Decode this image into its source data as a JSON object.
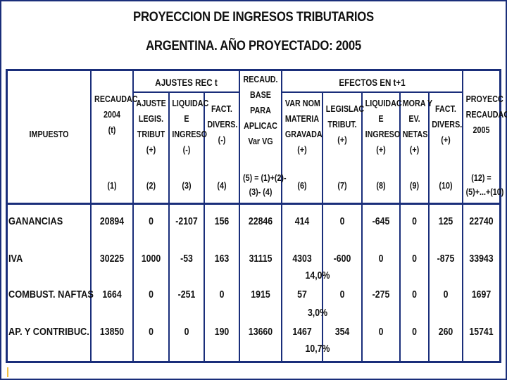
{
  "title": "PROYECCION DE INGRESOS TRIBUTARIOS",
  "subtitle": "ARGENTINA. AÑO PROYECTADO: 2005",
  "group_headers": {
    "ajustes": "AJUSTES REC t",
    "efectos": "EFECTOS EN t+1"
  },
  "columns": [
    {
      "lines": [
        "IMPUESTO"
      ],
      "index": ""
    },
    {
      "lines": [
        "RECAUDAC",
        "2004",
        "(t)"
      ],
      "index": "(1)"
    },
    {
      "lines": [
        "AJUSTE",
        "LEGIS.",
        "TRIBUT",
        "(+)"
      ],
      "index": "(2)"
    },
    {
      "lines": [
        "LIQUIDAC",
        "E",
        "INGRESO",
        "(-)"
      ],
      "index": "(3)"
    },
    {
      "lines": [
        "FACT.",
        "DIVERS.",
        "(-)"
      ],
      "index": "(4)"
    },
    {
      "lines": [
        "RECAUD.",
        "BASE",
        "PARA",
        "APLICAC",
        "Var VG"
      ],
      "index": "(5) = (1)+(2)-\n(3)- (4)"
    },
    {
      "lines": [
        "VAR NOM",
        "MATERIA",
        "GRAVADA",
        "(+)"
      ],
      "index": "(6)"
    },
    {
      "lines": [
        "LEGISLAC",
        "TRIBUT.",
        "(+)"
      ],
      "index": "(7)"
    },
    {
      "lines": [
        "LIQUIDAC",
        "E",
        "INGRESO",
        "(+)"
      ],
      "index": "(8)"
    },
    {
      "lines": [
        "MORA Y",
        "EV.",
        "NETAS",
        "(+)"
      ],
      "index": "(9)"
    },
    {
      "lines": [
        "FACT.",
        "DIVERS.",
        "(+)"
      ],
      "index": "(10)"
    },
    {
      "lines": [
        "PROYECC",
        "RECAUDAC",
        "2005"
      ],
      "index": "(12) =\n(5)+...+(10)"
    }
  ],
  "rows": [
    {
      "name": "GANANCIAS",
      "values": [
        "20894",
        "0",
        "-2107",
        "156",
        "22846",
        "414",
        "0",
        "-645",
        "0",
        "125",
        "22740"
      ],
      "pct": ""
    },
    {
      "name": "IVA",
      "values": [
        "30225",
        "1000",
        "-53",
        "163",
        "31115",
        "4303",
        "-600",
        "0",
        "0",
        "-875",
        "33943"
      ],
      "pct": "14,0%"
    },
    {
      "name": "COMBUST. NAFTAS",
      "values": [
        "1664",
        "0",
        "-251",
        "0",
        "1915",
        "57",
        "0",
        "-275",
        "0",
        "0",
        "1697"
      ],
      "pct": "3,0%"
    },
    {
      "name": "AP. Y CONTRIBUC.",
      "values": [
        "13850",
        "0",
        "0",
        "190",
        "13660",
        "1467",
        "354",
        "0",
        "0",
        "260",
        "15741"
      ],
      "pct": "10,7%"
    }
  ]
}
